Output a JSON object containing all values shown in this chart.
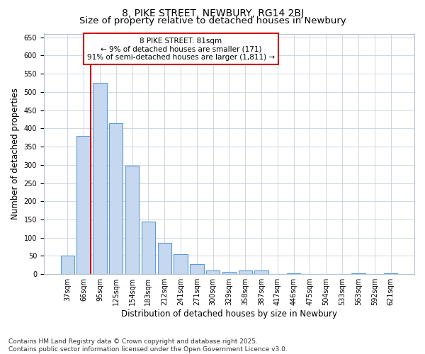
{
  "title": "8, PIKE STREET, NEWBURY, RG14 2BJ",
  "subtitle": "Size of property relative to detached houses in Newbury",
  "xlabel": "Distribution of detached houses by size in Newbury",
  "ylabel": "Number of detached properties",
  "categories": [
    "37sqm",
    "66sqm",
    "95sqm",
    "125sqm",
    "154sqm",
    "183sqm",
    "212sqm",
    "241sqm",
    "271sqm",
    "300sqm",
    "329sqm",
    "358sqm",
    "387sqm",
    "417sqm",
    "446sqm",
    "475sqm",
    "504sqm",
    "533sqm",
    "563sqm",
    "592sqm",
    "621sqm"
  ],
  "values": [
    50,
    380,
    525,
    415,
    298,
    145,
    85,
    55,
    28,
    10,
    7,
    10,
    11,
    0,
    3,
    0,
    0,
    0,
    3,
    0,
    3
  ],
  "bar_color": "#c5d8f0",
  "bar_edge_color": "#5b9bd5",
  "annotation_text": "8 PIKE STREET: 81sqm\n← 9% of detached houses are smaller (171)\n91% of semi-detached houses are larger (1,811) →",
  "annotation_box_facecolor": "#ffffff",
  "annotation_box_edge": "#cc0000",
  "vline_color": "#cc0000",
  "vline_x_index": 1,
  "ylim": [
    0,
    660
  ],
  "yticks": [
    0,
    50,
    100,
    150,
    200,
    250,
    300,
    350,
    400,
    450,
    500,
    550,
    600,
    650
  ],
  "footer1": "Contains HM Land Registry data © Crown copyright and database right 2025.",
  "footer2": "Contains public sector information licensed under the Open Government Licence v3.0.",
  "background_color": "#ffffff",
  "plot_bg_color": "#ffffff",
  "grid_color": "#c8d0e0",
  "title_fontsize": 10,
  "subtitle_fontsize": 9.5,
  "axis_label_fontsize": 8.5,
  "tick_fontsize": 7,
  "annotation_fontsize": 7.5,
  "footer_fontsize": 6.5
}
